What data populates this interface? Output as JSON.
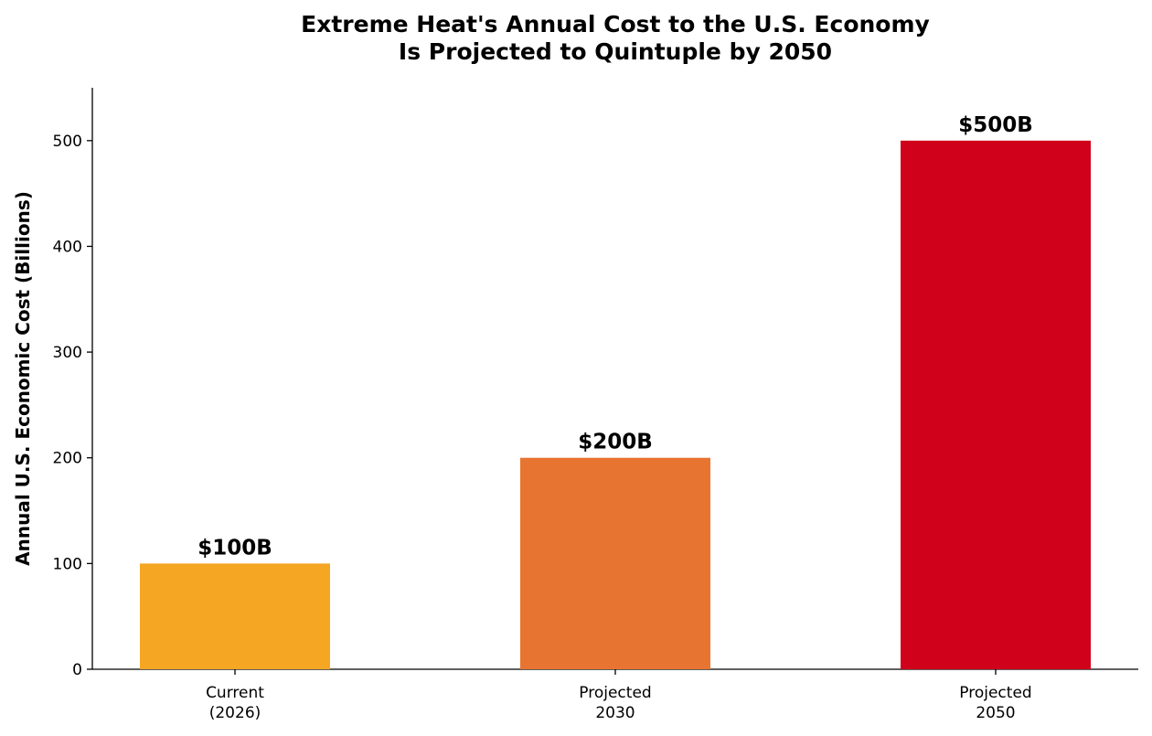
{
  "chart_data": {
    "type": "bar",
    "title": "Extreme Heat's Annual Cost to the U.S. Economy\nIs Projected to Quintuple by 2050",
    "xlabel": "",
    "ylabel": "Annual U.S. Economic Cost (Billions)",
    "categories": [
      "Current\n(2026)",
      "Projected\n2030",
      "Projected\n2050"
    ],
    "values": [
      100,
      200,
      500
    ],
    "data_labels": [
      "$100B",
      "$200B",
      "$500B"
    ],
    "colors": [
      "#f5a623",
      "#e87431",
      "#d0021b"
    ],
    "ylim": [
      0,
      550
    ],
    "yticks": [
      0,
      100,
      200,
      300,
      400,
      500
    ],
    "grid": false,
    "legend": "none"
  }
}
